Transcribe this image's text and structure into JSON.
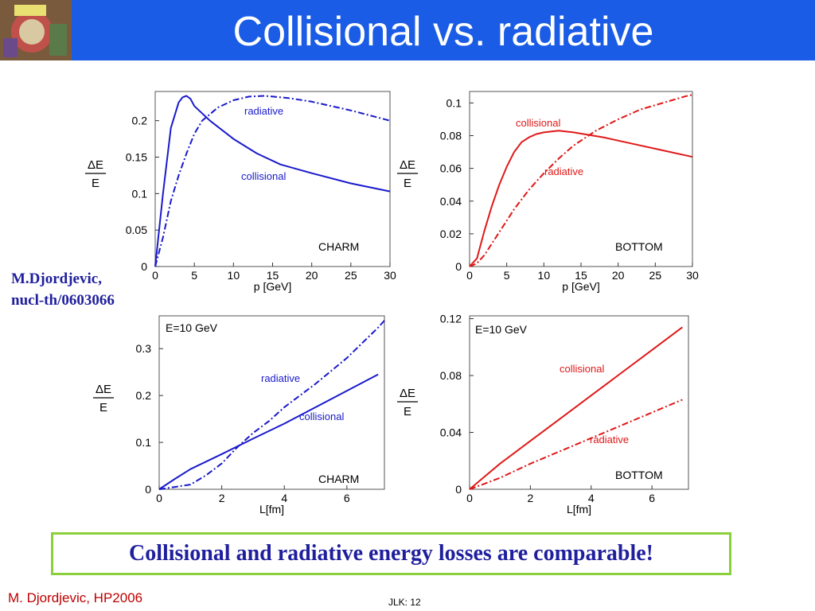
{
  "slide": {
    "title": "Collisional vs. radiative",
    "attribution_line1": "M.Djordjevic,",
    "attribution_line2": "nucl-th/0603066",
    "conclusion": "Collisional and radiative energy losses are comparable!",
    "footer_left": "M. Djordjevic, HP2006",
    "footer_center": "JLK: 12"
  },
  "colors": {
    "header": "#1a5ce6",
    "charm": "#1a1acc",
    "bottom": "#e01818",
    "accent_border": "#8ccf3c"
  },
  "chart_data": [
    {
      "type": "line",
      "label": "CHARM",
      "xlabel": "p [GeV]",
      "ylabel_num": "ΔE",
      "ylabel_den": "E",
      "xlim": [
        0,
        30
      ],
      "ylim": [
        0,
        0.24
      ],
      "xticks": [
        0,
        5,
        10,
        15,
        20,
        25,
        30
      ],
      "yticks": [
        0,
        0.05,
        0.1,
        0.15,
        0.2
      ],
      "ytick_labels": [
        "0",
        "0.05",
        "0.1",
        "0.15",
        "0.2"
      ],
      "series": [
        {
          "name": "collisional",
          "style": "solid",
          "x": [
            0,
            1,
            2,
            3,
            3.5,
            4,
            4.5,
            5,
            7,
            10,
            13,
            16,
            20,
            25,
            30
          ],
          "y": [
            0,
            0.1,
            0.19,
            0.225,
            0.232,
            0.234,
            0.23,
            0.22,
            0.2,
            0.175,
            0.155,
            0.14,
            0.128,
            0.114,
            0.103
          ]
        },
        {
          "name": "radiative",
          "style": "dashdot",
          "x": [
            0,
            1,
            2,
            3,
            4,
            5,
            6,
            8,
            10,
            12,
            14,
            17,
            20,
            25,
            30
          ],
          "y": [
            0,
            0.04,
            0.09,
            0.125,
            0.155,
            0.182,
            0.2,
            0.218,
            0.228,
            0.233,
            0.234,
            0.231,
            0.226,
            0.214,
            0.2
          ]
        }
      ],
      "series_labels": [
        {
          "text": "radiative"
        },
        {
          "text": "collisional"
        }
      ]
    },
    {
      "type": "line",
      "label": "BOTTOM",
      "xlabel": "p [GeV]",
      "ylabel_num": "ΔE",
      "ylabel_den": "E",
      "xlim": [
        0,
        30
      ],
      "ylim": [
        0,
        0.107
      ],
      "xticks": [
        0,
        5,
        10,
        15,
        20,
        25,
        30
      ],
      "yticks": [
        0,
        0.02,
        0.04,
        0.06,
        0.08,
        0.1
      ],
      "ytick_labels": [
        "0",
        "0.02",
        "0.04",
        "0.06",
        "0.08",
        "0.1"
      ],
      "series": [
        {
          "name": "collisional",
          "style": "solid",
          "x": [
            0,
            1,
            2,
            3,
            4,
            5,
            6,
            7,
            8,
            9,
            10,
            12,
            14,
            18,
            22,
            26,
            30
          ],
          "y": [
            0,
            0.005,
            0.022,
            0.037,
            0.05,
            0.061,
            0.07,
            0.076,
            0.079,
            0.081,
            0.082,
            0.083,
            0.082,
            0.079,
            0.075,
            0.071,
            0.067
          ]
        },
        {
          "name": "radiative",
          "style": "dashdot",
          "x": [
            0,
            1,
            2,
            3,
            4,
            5,
            6,
            7,
            8,
            10,
            12,
            14,
            17,
            20,
            23,
            26,
            29,
            30
          ],
          "y": [
            0,
            0.002,
            0.007,
            0.014,
            0.021,
            0.028,
            0.035,
            0.041,
            0.047,
            0.057,
            0.066,
            0.074,
            0.083,
            0.09,
            0.096,
            0.1,
            0.104,
            0.105
          ]
        }
      ],
      "series_labels": [
        {
          "text": "collisional"
        },
        {
          "text": "radiative"
        }
      ]
    },
    {
      "type": "line",
      "label": "CHARM",
      "annotation": "E=10 GeV",
      "xlabel": "L[fm]",
      "ylabel_num": "ΔE",
      "ylabel_den": "E",
      "xlim": [
        0,
        7.2
      ],
      "ylim": [
        0,
        0.37
      ],
      "xticks": [
        0,
        2,
        4,
        6
      ],
      "yticks": [
        0,
        0.1,
        0.2,
        0.3
      ],
      "ytick_labels": [
        "0",
        "0.1",
        "0.2",
        "0.3"
      ],
      "series": [
        {
          "name": "collisional",
          "style": "solid",
          "x": [
            0,
            0.5,
            1,
            2,
            3,
            4,
            5,
            6,
            7
          ],
          "y": [
            0,
            0.022,
            0.043,
            0.075,
            0.108,
            0.14,
            0.175,
            0.21,
            0.245
          ]
        },
        {
          "name": "radiative",
          "style": "dashdot",
          "x": [
            0,
            0.5,
            1,
            1.5,
            2,
            2.5,
            3,
            3.5,
            4,
            5,
            6,
            7,
            7.2
          ],
          "y": [
            0,
            0.005,
            0.01,
            0.03,
            0.055,
            0.09,
            0.12,
            0.145,
            0.175,
            0.225,
            0.28,
            0.345,
            0.36
          ]
        }
      ],
      "series_labels": [
        {
          "text": "radiative"
        },
        {
          "text": "collisional"
        }
      ]
    },
    {
      "type": "line",
      "label": "BOTTOM",
      "annotation": "E=10 GeV",
      "xlabel": "L[fm]",
      "ylabel_num": "ΔE",
      "ylabel_den": "E",
      "xlim": [
        0,
        7.2
      ],
      "ylim": [
        0,
        0.122
      ],
      "xticks": [
        0,
        2,
        4,
        6
      ],
      "yticks": [
        0,
        0.04,
        0.08,
        0.12
      ],
      "ytick_labels": [
        "0",
        "0.04",
        "0.08",
        "0.12"
      ],
      "series": [
        {
          "name": "collisional",
          "style": "solid",
          "x": [
            0,
            0.5,
            1,
            2,
            3,
            4,
            5,
            6,
            7
          ],
          "y": [
            0,
            0.009,
            0.018,
            0.034,
            0.05,
            0.066,
            0.082,
            0.098,
            0.114
          ]
        },
        {
          "name": "radiative",
          "style": "dashdot",
          "x": [
            0,
            0.5,
            1,
            2,
            3,
            4,
            5,
            6,
            7
          ],
          "y": [
            0,
            0.004,
            0.008,
            0.018,
            0.027,
            0.036,
            0.045,
            0.054,
            0.063
          ]
        }
      ],
      "series_labels": [
        {
          "text": "collisional"
        },
        {
          "text": "radiative"
        }
      ]
    }
  ]
}
